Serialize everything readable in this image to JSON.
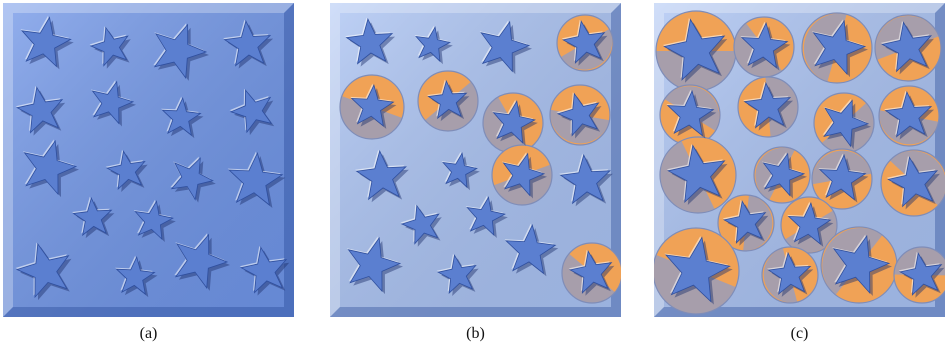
{
  "captions": [
    "(a)",
    "(b)",
    "(c)"
  ],
  "colors": {
    "tray_a": "#6f95e8",
    "tray_bc": "#a9c2f3",
    "star_fill": "#5b7fd0",
    "highlight_orange": "#f0a256",
    "highlight_overlay": "#8f9cc8"
  }
}
